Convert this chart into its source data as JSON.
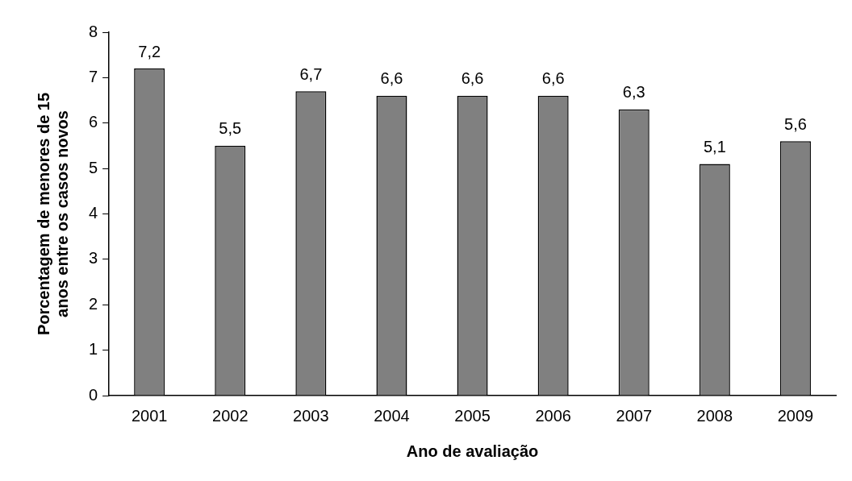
{
  "chart_data": {
    "type": "bar",
    "xlabel": "Ano de avaliação",
    "ylabel": "Porcentagem de menores de 15\nanos entre os casos novos",
    "categories": [
      "2001",
      "2002",
      "2003",
      "2004",
      "2005",
      "2006",
      "2007",
      "2008",
      "2009"
    ],
    "values": [
      7.2,
      5.5,
      6.7,
      6.6,
      6.6,
      6.6,
      6.3,
      5.1,
      5.6
    ],
    "value_labels": [
      "7,2",
      "5,5",
      "6,7",
      "6,6",
      "6,6",
      "6,6",
      "6,3",
      "5,1",
      "5,6"
    ],
    "color": "#808080",
    "ylim": [
      0,
      8
    ],
    "yticks": [
      0,
      1,
      2,
      3,
      4,
      5,
      6,
      7,
      8
    ],
    "grid": false,
    "legend": false
  }
}
